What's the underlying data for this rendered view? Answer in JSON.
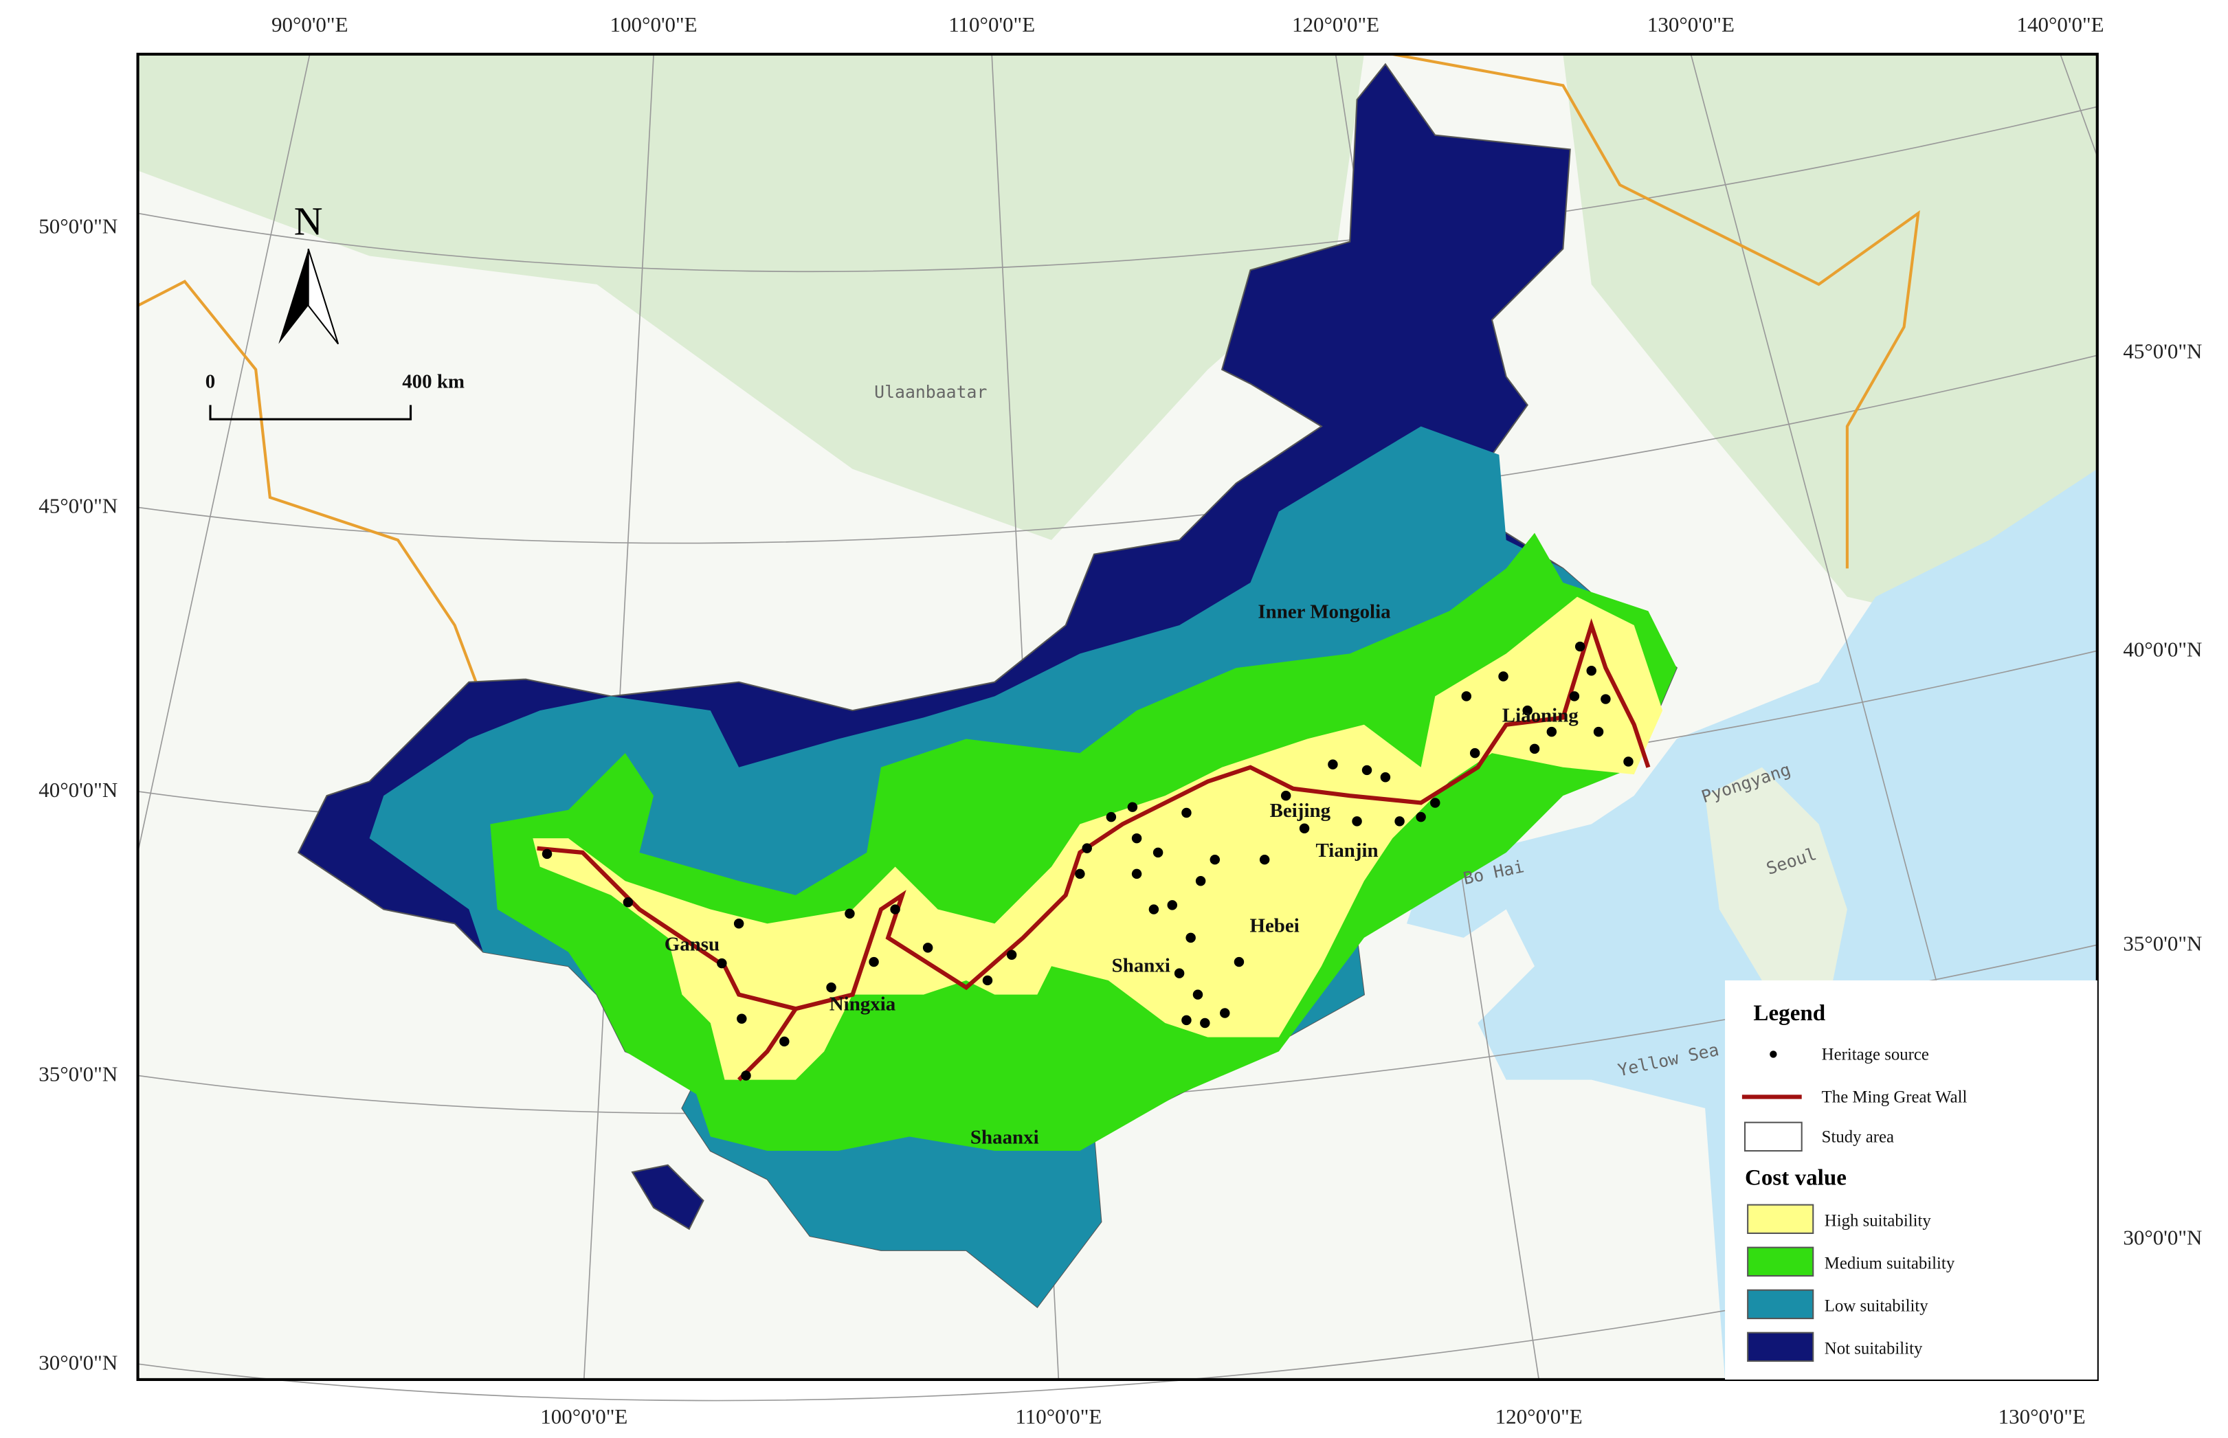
{
  "map": {
    "top_labels": [
      "90°0'0\"E",
      "100°0'0\"E",
      "110°0'0\"E",
      "120°0'0\"E",
      "130°0'0\"E",
      "140°0'0\"E"
    ],
    "bottom_labels": [
      "100°0'0\"E",
      "110°0'0\"E",
      "120°0'0\"E",
      "130°0'0\"E"
    ],
    "left_labels": [
      "50°0'0\"N",
      "45°0'0\"N",
      "40°0'0\"N",
      "35°0'0\"N",
      "30°0'0\"N"
    ],
    "right_labels": [
      "45°0'0\"N",
      "40°0'0\"N",
      "35°0'0\"N",
      "30°0'0\"N"
    ],
    "north": "N",
    "scale_bar": [
      "0",
      "400 km"
    ],
    "regions": [
      "Inner Mongolia",
      "Liaoning",
      "Beijing",
      "Tianjin",
      "Hebei",
      "Shanxi",
      "Gansu",
      "Ningxia",
      "Shaanxi"
    ],
    "places": [
      "Ulaanbaatar",
      "Pyongyang",
      "Seoul",
      "Bo Hai",
      "Yellow Sea"
    ],
    "legend": {
      "title": "Legend",
      "items": [
        "Heritage source",
        "The Ming Great Wall",
        "Study area"
      ],
      "cost_title": "Cost value",
      "cost_items": [
        "High suitability",
        "Medium suitability",
        "Low suitability",
        "Not suitability"
      ]
    }
  }
}
